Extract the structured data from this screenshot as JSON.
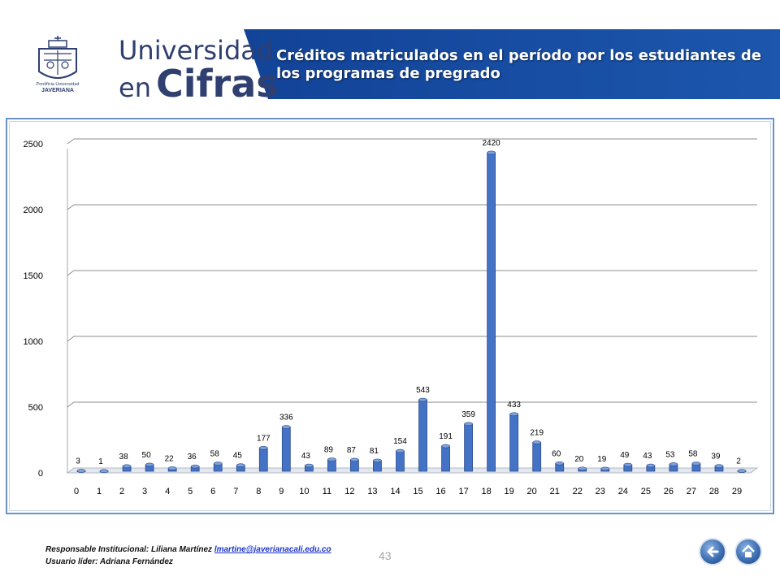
{
  "header": {
    "brand_line1": "Universidad",
    "brand_en": "en",
    "brand_cifras": "Cifras",
    "crest_text_top": "Pontificia Universidad",
    "crest_text_name": "JAVERIANA",
    "title": "Créditos matriculados en el período por los estudiantes de los programas de pregrado"
  },
  "chart_data": {
    "type": "bar",
    "categories": [
      "0",
      "1",
      "2",
      "3",
      "4",
      "5",
      "6",
      "7",
      "8",
      "9",
      "10",
      "11",
      "12",
      "13",
      "14",
      "15",
      "16",
      "17",
      "18",
      "19",
      "20",
      "21",
      "22",
      "23",
      "24",
      "25",
      "26",
      "27",
      "28",
      "29"
    ],
    "values": [
      3,
      1,
      38,
      50,
      22,
      36,
      58,
      45,
      177,
      336,
      43,
      89,
      87,
      81,
      154,
      543,
      191,
      359,
      2420,
      433,
      219,
      60,
      20,
      19,
      49,
      43,
      53,
      58,
      39,
      2
    ],
    "ylim": [
      0,
      2500
    ],
    "yticks": [
      0,
      500,
      1000,
      1500,
      2000,
      2500
    ],
    "grid": true,
    "bar_color": "#4472c4"
  },
  "footer": {
    "responsable_label": "Responsable Institucional: Liliana Martínez",
    "email": "lmartine@javerianacali.edu.co",
    "lider": "Usuario líder: Adriana Fernández",
    "page_number": "43"
  },
  "nav": {
    "back_icon": "arrow-left-icon",
    "home_icon": "home-icon"
  }
}
